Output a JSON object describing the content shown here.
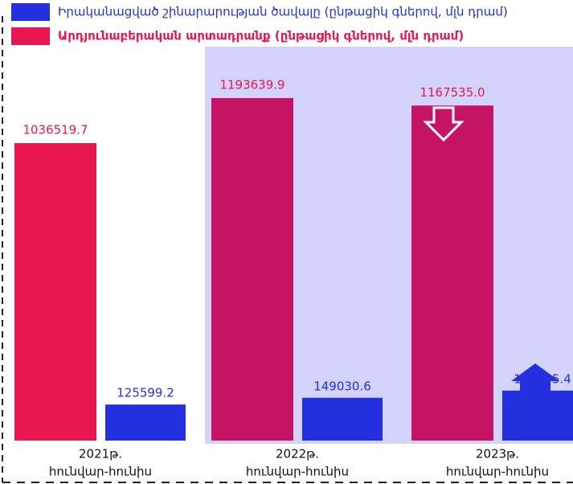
{
  "chart_data": {
    "type": "bar",
    "categories": [
      [
        "2021թ.",
        "հունվար-հունիս"
      ],
      [
        "2022թ.",
        "հունվար-հունիս"
      ],
      [
        "2023թ.",
        "հունվար-հունիս"
      ]
    ],
    "series": [
      {
        "name": "Իրականացված շինարարության ծավալը (ընթացիկ գներով, մլն դրամ)",
        "color": "#2430e0",
        "values": [
          125599.2,
          149030.6,
          174155.4
        ]
      },
      {
        "name": "Արդյունաբերական արտադրանք (ընթացիկ գներով, մլն դրամ)",
        "color": "#e8174f",
        "colors": [
          "#e8174f",
          "#c41463",
          "#c41463"
        ],
        "values": [
          1036519.7,
          1193639.9,
          1167535
        ],
        "value_labels": [
          "1036519.7",
          "1193639.9",
          "1167535.0"
        ]
      }
    ],
    "ylim": [
      0,
      1300000
    ]
  }
}
